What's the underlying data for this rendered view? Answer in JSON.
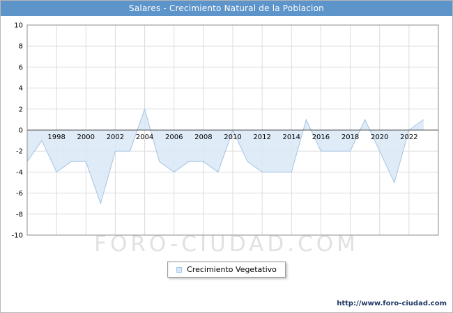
{
  "header": {
    "title": "Salares - Crecimiento Natural de la Poblacion",
    "bg_color": "#5d94c9",
    "text_color": "#ffffff"
  },
  "legend": {
    "label": "Crecimiento Vegetativo"
  },
  "watermark": "FORO-CIUDAD.COM",
  "footer": {
    "url": "http://www.foro-ciudad.com"
  },
  "chart_data": {
    "type": "area",
    "title": "Salares - Crecimiento Natural de la Poblacion",
    "x": [
      1996,
      1997,
      1998,
      1999,
      2000,
      2001,
      2002,
      2003,
      2004,
      2005,
      2006,
      2007,
      2008,
      2009,
      2010,
      2011,
      2012,
      2013,
      2014,
      2015,
      2016,
      2017,
      2018,
      2019,
      2020,
      2021,
      2022,
      2023
    ],
    "series": [
      {
        "name": "Crecimiento Vegetativo",
        "values": [
          -3,
          -1,
          -4,
          -3,
          -3,
          -7,
          -2,
          -2,
          2,
          -3,
          -4,
          -3,
          -3,
          -4,
          0,
          -3,
          -4,
          -4,
          -4,
          1,
          -2,
          -2,
          -2,
          1,
          -2,
          -5,
          0,
          1
        ]
      }
    ],
    "xlim": [
      1996,
      2024
    ],
    "ylim": [
      -10,
      10
    ],
    "yticks": [
      10,
      8,
      6,
      4,
      2,
      0,
      -2,
      -4,
      -6,
      -8,
      -10
    ],
    "xticks": [
      1998,
      2000,
      2002,
      2004,
      2006,
      2008,
      2010,
      2012,
      2014,
      2016,
      2018,
      2020,
      2022
    ],
    "grid": true,
    "baseline": 0,
    "legend_position": "bottom",
    "colors": {
      "fill": "#d9e7f6",
      "line": "#a4c3e5",
      "grid": "#dcdcdc",
      "zero_line": "#4d4d4d",
      "plot_border": "#8c8c8c",
      "tick_text": "#000000"
    }
  }
}
